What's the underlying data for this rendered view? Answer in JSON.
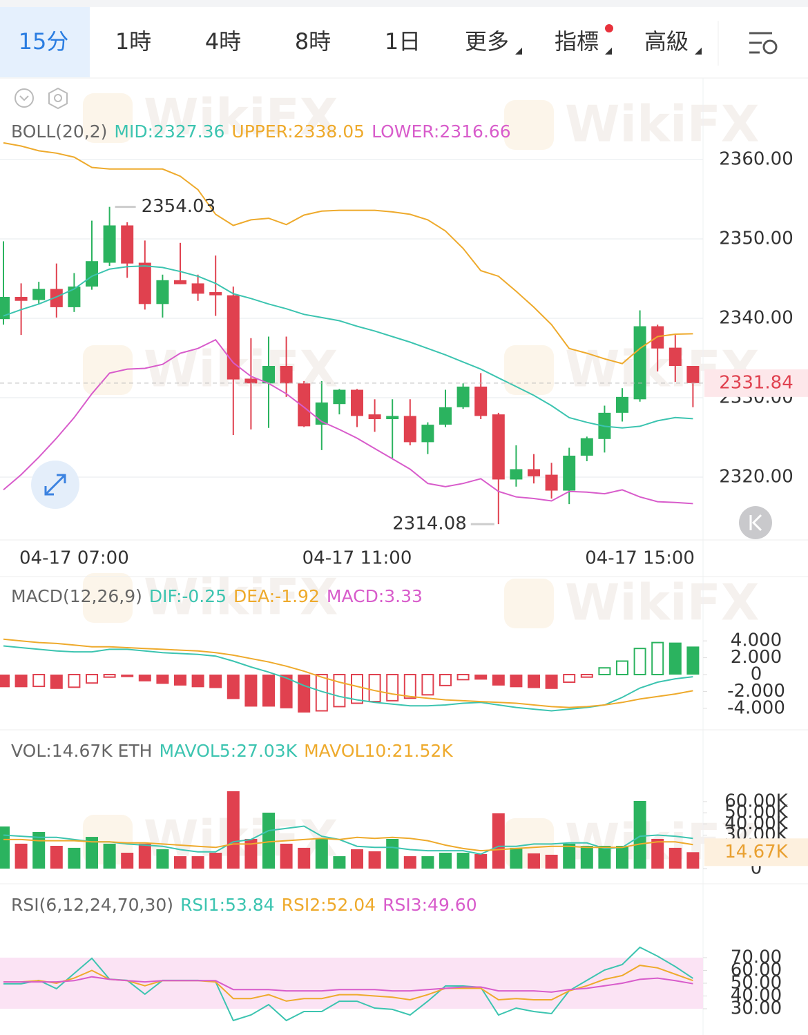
{
  "tabs": [
    "15分",
    "1時",
    "4時",
    "8時",
    "1日",
    "更多",
    "指標",
    "高級"
  ],
  "watermark": "WikiFX",
  "chart_data": [
    {
      "type": "candlestick",
      "title": "BOLL(20,2)",
      "categories": [
        null,
        null,
        null,
        null,
        "04-17 07:00",
        null,
        null,
        null,
        null,
        null,
        null,
        null,
        null,
        null,
        null,
        null,
        null,
        null,
        null,
        null,
        "04-17 11:00",
        null,
        null,
        null,
        null,
        null,
        null,
        null,
        null,
        null,
        null,
        null,
        null,
        null,
        null,
        null,
        "04-17 15:00",
        null,
        null,
        null
      ],
      "open": [
        2339.9,
        2342.7,
        2342.3,
        2343.7,
        2341.4,
        2344.0,
        2347.0,
        2351.7,
        2347.0,
        2341.8,
        2344.8,
        2344.4,
        2343.3,
        2342.9,
        2332.4,
        2331.8,
        2334.0,
        2331.8,
        2326.6,
        2329.2,
        2331.0,
        2327.9,
        2327.3,
        2327.7,
        2324.4,
        2326.6,
        2328.8,
        2331.4,
        2327.9,
        2319.7,
        2321.0,
        2320.3,
        2318.3,
        2322.7,
        2324.8,
        2328.1,
        2329.8,
        2339.0,
        2336.3,
        2334.0
      ],
      "high": [
        2349.7,
        2344.4,
        2344.6,
        2346.9,
        2345.7,
        2352.3,
        2354.03,
        2352.1,
        2349.8,
        2345.5,
        2349.5,
        2345.5,
        2347.9,
        2344.0,
        2337.5,
        2337.7,
        2337.7,
        2332.1,
        2332.1,
        2331.1,
        2331.1,
        2329.8,
        2329.8,
        2329.8,
        2326.9,
        2331.0,
        2331.8,
        2333.1,
        2328.1,
        2324.0,
        2322.9,
        2321.8,
        2323.7,
        2325.1,
        2329.0,
        2331.2,
        2341.0,
        2339.2,
        2337.9,
        2334.0
      ],
      "low": [
        2339.2,
        2337.9,
        2341.8,
        2340.1,
        2340.8,
        2343.6,
        2346.6,
        2345.1,
        2341.1,
        2340.1,
        2344.3,
        2342.2,
        2340.3,
        2325.3,
        2326.0,
        2326.2,
        2330.1,
        2326.3,
        2323.4,
        2327.9,
        2326.3,
        2325.7,
        2322.4,
        2324.0,
        2322.9,
        2326.3,
        2328.6,
        2327.3,
        2314.08,
        2318.8,
        2319.2,
        2317.3,
        2316.6,
        2322.0,
        2323.1,
        2327.0,
        2329.5,
        2333.3,
        2332.0,
        2328.8
      ],
      "close": [
        2342.7,
        2342.2,
        2343.7,
        2341.4,
        2344.0,
        2347.2,
        2351.7,
        2346.9,
        2341.8,
        2344.8,
        2344.3,
        2343.1,
        2342.9,
        2332.3,
        2331.8,
        2334.0,
        2331.8,
        2326.4,
        2329.4,
        2331.0,
        2327.7,
        2327.3,
        2327.7,
        2324.4,
        2326.6,
        2328.8,
        2331.4,
        2327.7,
        2319.7,
        2321.0,
        2320.1,
        2318.3,
        2322.7,
        2324.9,
        2328.1,
        2330.1,
        2339.0,
        2336.2,
        2334.0,
        2331.84
      ],
      "up_color": "#2bb35f",
      "down_color": "#e0414f",
      "series": [
        {
          "name": "MID:2327.36",
          "color": "#3cc4b0",
          "values": [
            2340.3,
            2341.1,
            2341.8,
            2342.7,
            2343.7,
            2345.3,
            2346.2,
            2346.5,
            2346.6,
            2346.4,
            2345.9,
            2345.3,
            2344.4,
            2343.1,
            2342.5,
            2341.8,
            2341.2,
            2340.5,
            2340.1,
            2339.7,
            2339.0,
            2338.4,
            2337.7,
            2337.0,
            2336.2,
            2335.4,
            2334.5,
            2333.6,
            2332.5,
            2331.4,
            2330.3,
            2329.0,
            2327.5,
            2326.9,
            2326.4,
            2326.2,
            2326.4,
            2327.1,
            2327.5,
            2327.36
          ]
        },
        {
          "name": "UPPER:2338.05",
          "color": "#eeaa2c",
          "values": [
            2362.1,
            2361.7,
            2361.1,
            2360.8,
            2360.3,
            2359.0,
            2358.8,
            2358.8,
            2358.8,
            2358.8,
            2357.9,
            2356.2,
            2353.1,
            2351.7,
            2352.4,
            2352.6,
            2351.8,
            2353.0,
            2353.5,
            2353.6,
            2353.6,
            2353.6,
            2353.4,
            2353.1,
            2352.4,
            2351.0,
            2348.8,
            2346.0,
            2345.3,
            2343.4,
            2341.4,
            2339.2,
            2336.2,
            2335.6,
            2334.9,
            2334.3,
            2336.2,
            2337.7,
            2338.0,
            2338.05
          ]
        },
        {
          "name": "LOWER:2316.66",
          "color": "#d85ccb",
          "values": [
            2318.4,
            2320.3,
            2322.5,
            2324.9,
            2327.5,
            2330.5,
            2333.1,
            2333.6,
            2333.7,
            2334.2,
            2335.6,
            2336.2,
            2337.3,
            2334.4,
            2332.7,
            2331.8,
            2330.5,
            2328.8,
            2327.0,
            2326.0,
            2324.9,
            2323.6,
            2322.3,
            2321.0,
            2319.2,
            2318.8,
            2319.2,
            2319.8,
            2318.2,
            2317.5,
            2317.3,
            2317.0,
            2318.2,
            2318.1,
            2317.9,
            2318.4,
            2317.5,
            2316.9,
            2316.8,
            2316.66
          ]
        }
      ],
      "ylim": [
        2312.26,
        2370.09
      ],
      "yticks": [
        {
          "value": 2320,
          "label": "2320.00"
        },
        {
          "value": 2330,
          "label": "2330.00"
        },
        {
          "value": 2340,
          "label": "2340.00"
        },
        {
          "value": 2350,
          "label": "2350.00"
        },
        {
          "value": 2360,
          "label": "2360.00"
        }
      ],
      "grid": true
    },
    {
      "type": "macd",
      "title": "MACD(12,26,9)",
      "up_color": "#2bb35f",
      "down_color": "#e0414f",
      "series": [
        {
          "name": "DIF:-0.25",
          "color": "#3cc4b0",
          "values": [
            3.4,
            3.2,
            3.0,
            2.8,
            2.7,
            2.7,
            3.0,
            3.0,
            2.8,
            2.6,
            2.5,
            2.4,
            2.2,
            1.6,
            0.9,
            0.3,
            -0.4,
            -1.3,
            -2.0,
            -2.6,
            -3.0,
            -3.3,
            -3.5,
            -3.7,
            -3.7,
            -3.6,
            -3.4,
            -3.3,
            -3.6,
            -3.9,
            -4.1,
            -4.3,
            -4.1,
            -3.9,
            -3.6,
            -2.7,
            -1.6,
            -0.9,
            -0.5,
            -0.25
          ]
        },
        {
          "name": "DEA:-1.92",
          "color": "#eeaa2c",
          "values": [
            4.2,
            4.0,
            3.8,
            3.7,
            3.5,
            3.3,
            3.3,
            3.2,
            3.1,
            3.0,
            2.9,
            2.8,
            2.6,
            2.3,
            1.9,
            1.5,
            1.0,
            0.4,
            -0.3,
            -0.9,
            -1.4,
            -1.9,
            -2.3,
            -2.6,
            -2.8,
            -3.0,
            -3.1,
            -3.2,
            -3.3,
            -3.4,
            -3.6,
            -3.8,
            -3.9,
            -3.8,
            -3.6,
            -3.3,
            -2.9,
            -2.6,
            -2.3,
            -1.92
          ]
        },
        {
          "name": "MACD:3.33",
          "color": "#d85ccb",
          "type": "bar",
          "values": [
            -1.5,
            -1.5,
            -1.4,
            -1.7,
            -1.5,
            -1.0,
            -0.3,
            -0.3,
            -0.8,
            -1.1,
            -1.3,
            -1.5,
            -1.6,
            -2.9,
            -3.8,
            -3.8,
            -4.0,
            -4.5,
            -4.3,
            -3.8,
            -3.4,
            -3.2,
            -3.1,
            -2.8,
            -2.4,
            -1.3,
            -0.6,
            -0.6,
            -1.3,
            -1.5,
            -1.6,
            -1.7,
            -0.9,
            -0.3,
            0.8,
            1.6,
            3.1,
            3.8,
            3.8,
            3.33
          ]
        }
      ],
      "ylim": [
        -5.57,
        5.9
      ],
      "yticks": [
        {
          "value": -4,
          "label": "-4.000"
        },
        {
          "value": -2,
          "label": "-2.000"
        },
        0,
        {
          "value": 2,
          "label": "2.000"
        },
        {
          "value": 4,
          "label": "4.000"
        }
      ]
    },
    {
      "type": "volume",
      "title": "VOL:14.67K ETH",
      "values": [
        37.7,
        22.3,
        32.8,
        20.4,
        18.6,
        28.4,
        22.3,
        14.2,
        22.3,
        17.3,
        11.1,
        11.1,
        14.2,
        69.3,
        26.6,
        50.1,
        22.3,
        18.6,
        26.6,
        11.1,
        17.3,
        15.5,
        26.6,
        11.1,
        11.1,
        14.2,
        14.2,
        13.0,
        49.5,
        18.6,
        13.6,
        12.4,
        22.3,
        20.4,
        20.4,
        20.4,
        60.6,
        26.6,
        18.6,
        14.67
      ],
      "value_labels": [
        null,
        null,
        null,
        null,
        null,
        null,
        null,
        null,
        null,
        null,
        null,
        null,
        null,
        null,
        null,
        null,
        null,
        null,
        null,
        null,
        null,
        null,
        null,
        null,
        null,
        null,
        null,
        null,
        null,
        null,
        null,
        null,
        null,
        null,
        null,
        null,
        null,
        null,
        null,
        "14.67K"
      ],
      "series": [
        {
          "name": "MAVOL5:27.03K",
          "color": "#3cc4b0",
          "values": [
            30,
            29,
            28,
            28,
            26,
            24,
            24,
            22,
            21,
            20,
            17,
            15,
            15,
            24,
            26,
            34,
            36,
            38,
            29,
            26,
            20,
            19,
            19,
            17,
            16,
            16,
            16,
            13,
            20,
            20,
            22,
            22,
            23,
            23,
            18,
            19,
            29,
            30,
            29,
            27.03
          ]
        },
        {
          "name": "MAVOL10:21.52K",
          "color": "#eeaa2c",
          "values": [
            26,
            26,
            25,
            25,
            25,
            24,
            24,
            23,
            23,
            22,
            21,
            20,
            19,
            22,
            22,
            24,
            25,
            26,
            27,
            26,
            28,
            27,
            28,
            27,
            25,
            21,
            18,
            16,
            17,
            18,
            19,
            20,
            20,
            19,
            19,
            19,
            22,
            24,
            24,
            21.52
          ]
        }
      ],
      "ylim": [
        0,
        91.5
      ],
      "yticks": [
        0,
        {
          "value": 30,
          "label": "30.00K"
        },
        {
          "value": 40,
          "label": "40.00K"
        },
        {
          "value": 50,
          "label": "50.00K"
        },
        {
          "value": 60,
          "label": "60.00K"
        }
      ]
    },
    {
      "type": "line",
      "title": "RSI(6,12,24,70,30)",
      "band": [
        30,
        70
      ],
      "band_color": "#fbe3f4",
      "series": [
        {
          "name": "RSI1:53.84",
          "color": "#3cc4b0",
          "values": [
            49.5,
            49.5,
            52.2,
            45.7,
            57.6,
            69.5,
            53.2,
            52.2,
            41.4,
            52.2,
            52.2,
            52.2,
            51.1,
            20.8,
            25.1,
            33.2,
            20.8,
            27.8,
            27.8,
            35.9,
            35.9,
            30.5,
            29.5,
            25.1,
            35.9,
            47.8,
            47.8,
            46.8,
            25.1,
            30.5,
            27.8,
            26.2,
            44.1,
            52.2,
            60.3,
            64.6,
            78.1,
            71.1,
            63.0,
            53.84
          ]
        },
        {
          "name": "RSI2:52.04",
          "color": "#eeaa2c",
          "values": [
            51,
            51,
            52,
            50,
            54,
            60,
            53,
            52,
            48,
            52,
            52,
            52,
            51,
            38,
            38,
            41,
            36,
            38,
            38,
            41,
            41,
            40,
            39,
            37,
            41,
            46,
            46,
            46,
            37,
            38,
            37,
            37,
            44,
            48,
            53,
            56,
            64,
            62,
            57,
            52.04
          ]
        },
        {
          "name": "RSI3:49.60",
          "color": "#d85ccb",
          "values": [
            51,
            51,
            51,
            51,
            52,
            55,
            53,
            52,
            51,
            52,
            52,
            52,
            52,
            45,
            45,
            45,
            44,
            44,
            44,
            45,
            45,
            45,
            44,
            44,
            45,
            46,
            47,
            47,
            44,
            44,
            44,
            43,
            45,
            46,
            48,
            50,
            53,
            54,
            52,
            49.6
          ]
        }
      ],
      "ylim": [
        11.6,
        95.4
      ],
      "yticks": [
        {
          "value": 30,
          "label": "30.00"
        },
        {
          "value": 40,
          "label": "40.00"
        },
        {
          "value": 50,
          "label": "50.00"
        },
        {
          "value": 60,
          "label": "60.00"
        },
        {
          "value": 70,
          "label": "70.00"
        }
      ]
    }
  ]
}
